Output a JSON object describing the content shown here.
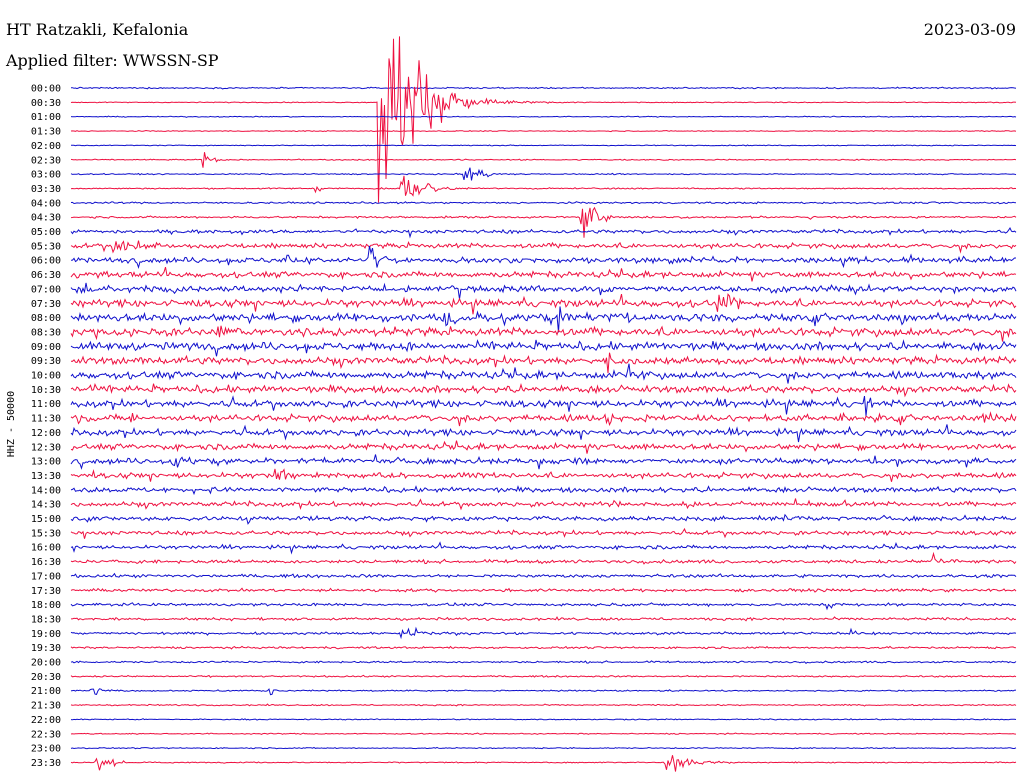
{
  "header": {
    "station": "HT Ratzakli, Kefalonia",
    "filter": "Applied filter: WWSSN-SP",
    "date": "2023-03-09"
  },
  "colors": {
    "trace_a": "#1010cc",
    "trace_b": "#ee1040",
    "text": "#000000",
    "background": "#ffffff"
  },
  "chart_data": {
    "type": "line",
    "subtype": "helicorder",
    "ylabel": "HHZ - 50000",
    "row_labels": [
      "00:00",
      "00:30",
      "01:00",
      "01:30",
      "02:00",
      "02:30",
      "03:00",
      "03:30",
      "04:00",
      "04:30",
      "05:00",
      "05:30",
      "06:00",
      "06:30",
      "07:00",
      "07:30",
      "08:00",
      "08:30",
      "09:00",
      "09:30",
      "10:00",
      "10:30",
      "11:00",
      "11:30",
      "12:00",
      "12:30",
      "13:00",
      "13:30",
      "14:00",
      "14:30",
      "15:00",
      "15:30",
      "16:00",
      "16:30",
      "17:00",
      "17:30",
      "18:00",
      "18:30",
      "19:00",
      "19:30",
      "20:00",
      "20:30",
      "21:00",
      "21:30",
      "22:00",
      "22:30",
      "23:00",
      "23:30"
    ],
    "row_minutes": 30,
    "color_pattern": [
      "trace_a",
      "trace_b"
    ],
    "noise_level": [
      0.6,
      0.4,
      0.4,
      0.4,
      0.4,
      0.5,
      0.5,
      0.6,
      0.8,
      0.9,
      1.6,
      2.2,
      2.5,
      2.6,
      2.8,
      3.2,
      3.6,
      3.6,
      3.5,
      3.3,
      3.2,
      3.1,
      3.1,
      3.0,
      2.8,
      2.6,
      2.5,
      2.4,
      2.2,
      2.1,
      2.0,
      1.8,
      1.6,
      1.5,
      1.4,
      1.3,
      1.2,
      1.2,
      1.1,
      0.9,
      0.8,
      0.7,
      0.6,
      0.6,
      0.5,
      0.5,
      0.5,
      0.5
    ],
    "events": [
      {
        "row": 1,
        "minute": 9.8,
        "amplitude": 120,
        "duration_min": 2.2
      },
      {
        "row": 5,
        "minute": 4.2,
        "amplitude": 9,
        "duration_min": 0.5
      },
      {
        "row": 6,
        "minute": 12.5,
        "amplitude": 14,
        "duration_min": 0.9
      },
      {
        "row": 7,
        "minute": 10.5,
        "amplitude": 18,
        "duration_min": 1.5
      },
      {
        "row": 7,
        "minute": 7.8,
        "amplitude": 4,
        "duration_min": 0.3
      },
      {
        "row": 9,
        "minute": 16.2,
        "amplitude": 28,
        "duration_min": 0.8
      },
      {
        "row": 9,
        "minute": 23.4,
        "amplitude": 5,
        "duration_min": 0.3
      },
      {
        "row": 11,
        "minute": 1.3,
        "amplitude": 9,
        "duration_min": 1.7
      },
      {
        "row": 12,
        "minute": 9.5,
        "amplitude": 18,
        "duration_min": 0.6
      },
      {
        "row": 12,
        "minute": 6.8,
        "amplitude": 8,
        "duration_min": 0.4
      },
      {
        "row": 14,
        "minute": 0.3,
        "amplitude": 12,
        "duration_min": 0.8
      },
      {
        "row": 15,
        "minute": 20.5,
        "amplitude": 12,
        "duration_min": 1.0
      },
      {
        "row": 16,
        "minute": 11.8,
        "amplitude": 14,
        "duration_min": 0.5
      },
      {
        "row": 16,
        "minute": 15.5,
        "amplitude": 12,
        "duration_min": 0.5
      },
      {
        "row": 17,
        "minute": 4.7,
        "amplitude": 12,
        "duration_min": 0.4
      },
      {
        "row": 19,
        "minute": 17.0,
        "amplitude": 13,
        "duration_min": 0.4
      },
      {
        "row": 20,
        "minute": 17.7,
        "amplitude": 10,
        "duration_min": 0.5
      },
      {
        "row": 22,
        "minute": 25.2,
        "amplitude": 12,
        "duration_min": 0.6
      },
      {
        "row": 23,
        "minute": 1.8,
        "amplitude": 10,
        "duration_min": 0.5
      },
      {
        "row": 23,
        "minute": 17.0,
        "amplitude": 12,
        "duration_min": 0.5
      },
      {
        "row": 23,
        "minute": 29.0,
        "amplitude": 10,
        "duration_min": 0.6
      },
      {
        "row": 26,
        "minute": 3.2,
        "amplitude": 9,
        "duration_min": 0.8
      },
      {
        "row": 27,
        "minute": 6.5,
        "amplitude": 14,
        "duration_min": 0.8
      },
      {
        "row": 29,
        "minute": 17.2,
        "amplitude": 6,
        "duration_min": 0.3
      },
      {
        "row": 30,
        "minute": 5.6,
        "amplitude": 6,
        "duration_min": 0.4
      },
      {
        "row": 33,
        "minute": 27.3,
        "amplitude": 12,
        "duration_min": 0.8
      },
      {
        "row": 36,
        "minute": 24.0,
        "amplitude": 9,
        "duration_min": 0.3
      },
      {
        "row": 38,
        "minute": 10.5,
        "amplitude": 5,
        "duration_min": 2.6
      },
      {
        "row": 38,
        "minute": 24.8,
        "amplitude": 9,
        "duration_min": 0.3
      },
      {
        "row": 42,
        "minute": 0.6,
        "amplitude": 5,
        "duration_min": 1.0
      },
      {
        "row": 42,
        "minute": 6.3,
        "amplitude": 5,
        "duration_min": 0.4
      },
      {
        "row": 47,
        "minute": 0.8,
        "amplitude": 14,
        "duration_min": 0.7
      },
      {
        "row": 47,
        "minute": 18.9,
        "amplitude": 18,
        "duration_min": 1.2
      }
    ]
  }
}
